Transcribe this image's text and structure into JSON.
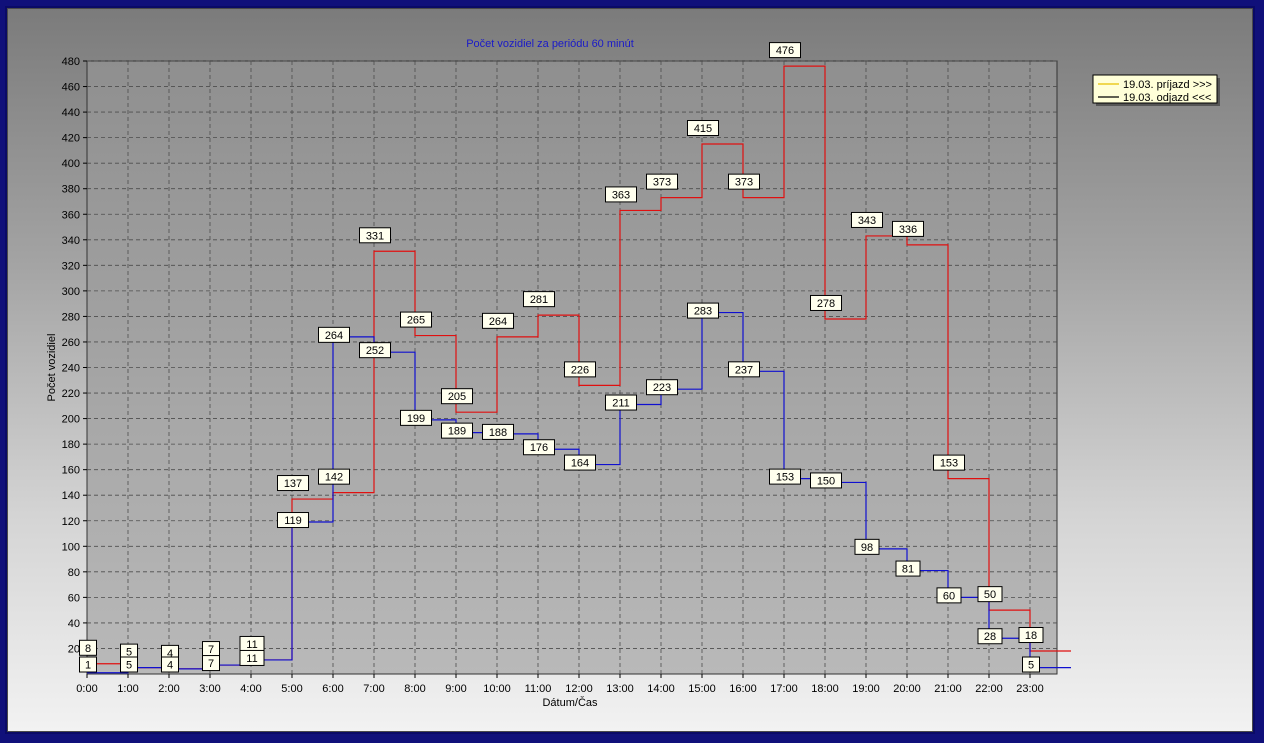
{
  "chart_data": {
    "type": "line",
    "step": true,
    "title": "Počet vozidiel za periódu 60 minút",
    "xlabel": "Dátum/Čas",
    "ylabel": "Počet vozidiel",
    "ylim": [
      0,
      480
    ],
    "yticks": [
      20,
      40,
      60,
      80,
      100,
      120,
      140,
      160,
      180,
      200,
      220,
      240,
      260,
      280,
      300,
      320,
      340,
      360,
      380,
      400,
      420,
      440,
      460,
      480
    ],
    "categories": [
      "0:00",
      "1:00",
      "2:00",
      "3:00",
      "4:00",
      "5:00",
      "6:00",
      "7:00",
      "8:00",
      "9:00",
      "10:00",
      "11:00",
      "12:00",
      "13:00",
      "14:00",
      "15:00",
      "16:00",
      "17:00",
      "18:00",
      "19:00",
      "20:00",
      "21:00",
      "22:00",
      "23:00"
    ],
    "grid": true,
    "legend_position": "top-right",
    "series": [
      {
        "name": "19.03.  príjazd >>>",
        "color": "#e01010",
        "values": [
          8,
          5,
          4,
          7,
          11,
          137,
          142,
          331,
          265,
          205,
          264,
          281,
          226,
          363,
          373,
          415,
          373,
          476,
          278,
          343,
          336,
          153,
          50,
          18
        ]
      },
      {
        "name": "19.03.  odjazd <<<",
        "color": "#1010d0",
        "values": [
          1,
          5,
          4,
          7,
          11,
          119,
          264,
          252,
          199,
          189,
          188,
          176,
          164,
          211,
          223,
          283,
          237,
          153,
          150,
          98,
          81,
          60,
          28,
          5
        ]
      }
    ]
  },
  "colors": {
    "plot_bg": "#a0a0a0",
    "title": "#1a1ac8",
    "legend_bg": "#ffffd8"
  }
}
